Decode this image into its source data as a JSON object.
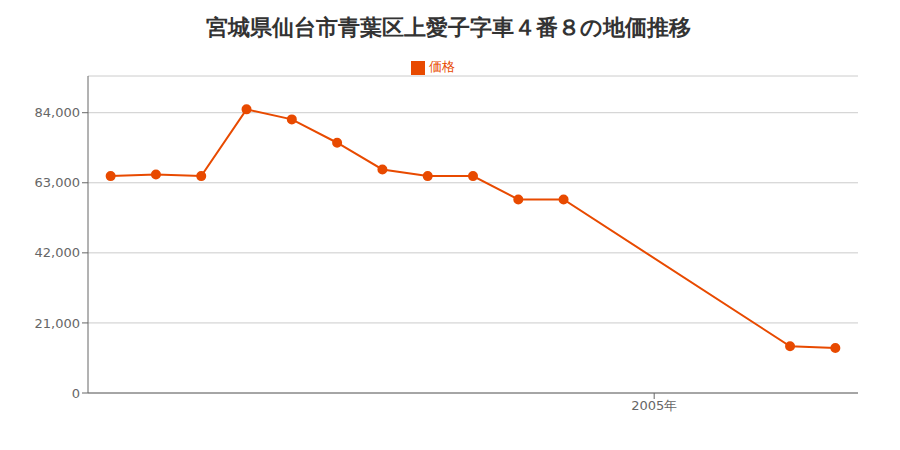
{
  "chart_data": {
    "type": "line",
    "title": "宮城県仙台市青葉区上愛子字車４番８の地価推移",
    "x": [
      1993,
      1994,
      1995,
      1996,
      1997,
      1998,
      1999,
      2000,
      2001,
      2002,
      2003,
      2008,
      2009
    ],
    "series": [
      {
        "name": "価格",
        "color": "#e84a00",
        "values": [
          65000,
          65500,
          65000,
          85000,
          82000,
          75000,
          67000,
          65000,
          65000,
          58000,
          58000,
          14000,
          13500
        ],
        "marker": "circle"
      }
    ],
    "xlim": [
      1992.5,
      2009.5
    ],
    "xticks": [
      {
        "value": 2005,
        "label": "2005年"
      }
    ],
    "ylim": [
      0,
      95000
    ],
    "yticks": [
      0,
      {
        "value": 21000,
        "label": "21,000"
      },
      {
        "value": 42000,
        "label": "42,000"
      },
      {
        "value": 63000,
        "label": "63,000"
      },
      {
        "value": 84000,
        "label": "84,000"
      }
    ],
    "grid": "y",
    "legend": "top"
  }
}
